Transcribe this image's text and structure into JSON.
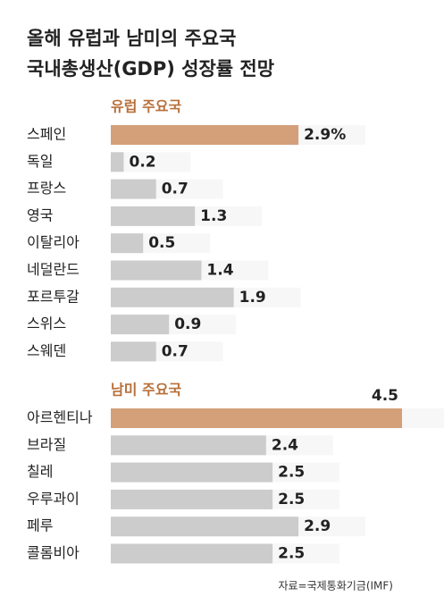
{
  "title": [
    "올해 유럽과 남미의 주요국",
    "국내총생산(GDP) 성장률 전망"
  ],
  "source": "자료=국제통화기금(IMF)",
  "chart_data": [
    {
      "type": "bar",
      "orientation": "horizontal",
      "subtitle": "유럽 주요국",
      "categories": [
        "스페인",
        "독일",
        "프랑스",
        "영국",
        "이탈리아",
        "네덜란드",
        "포르투갈",
        "스위스",
        "스웨덴"
      ],
      "values": [
        2.9,
        0.2,
        0.7,
        1.3,
        0.5,
        1.4,
        1.9,
        0.9,
        0.7
      ],
      "value_labels": [
        "2.9%",
        "0.2",
        "0.7",
        "1.3",
        "0.5",
        "1.4",
        "1.9",
        "0.9",
        "0.7"
      ],
      "colors": [
        "#d4a07a",
        "#cccccc",
        "#cccccc",
        "#cccccc",
        "#cccccc",
        "#cccccc",
        "#cccccc",
        "#cccccc",
        "#cccccc"
      ]
    },
    {
      "type": "bar",
      "orientation": "horizontal",
      "subtitle": "남미 주요국",
      "categories": [
        "아르헨티나",
        "브라질",
        "칠레",
        "우루과이",
        "페루",
        "콜롬비아"
      ],
      "values": [
        4.5,
        2.4,
        2.5,
        2.5,
        2.9,
        2.5
      ],
      "value_labels": [
        "4.5",
        "2.4",
        "2.5",
        "2.5",
        "2.9",
        "2.5"
      ],
      "colors": [
        "#d4a07a",
        "#cccccc",
        "#cccccc",
        "#cccccc",
        "#cccccc",
        "#cccccc"
      ]
    }
  ]
}
